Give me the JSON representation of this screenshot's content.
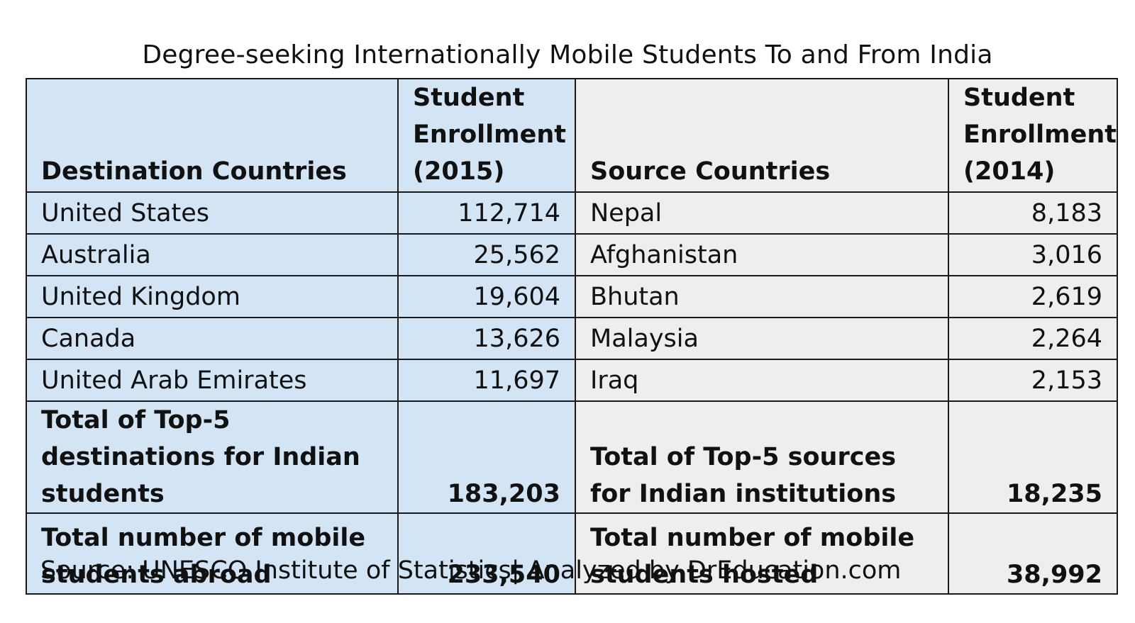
{
  "chart_data": {
    "type": "table",
    "title": "Degree-seeking Internationally Mobile Students To and From India",
    "columns": [
      "Destination Countries",
      "Student Enrollment (2015)",
      "Source Countries",
      "Student Enrollment (2014)"
    ],
    "header": {
      "destination_countries": "Destination Countries",
      "enrollment_2015": "Student Enrollment (2015)",
      "source_countries": "Source Countries",
      "enrollment_2014": "Student Enrollment (2014)"
    },
    "rows": [
      {
        "destination": "United States",
        "destination_enrollment": "112,714",
        "source": "Nepal",
        "source_enrollment": "8,183"
      },
      {
        "destination": "Australia",
        "destination_enrollment": "25,562",
        "source": "Afghanistan",
        "source_enrollment": "3,016"
      },
      {
        "destination": "United Kingdom",
        "destination_enrollment": "19,604",
        "source": "Bhutan",
        "source_enrollment": "2,619"
      },
      {
        "destination": "Canada",
        "destination_enrollment": "13,626",
        "source": "Malaysia",
        "source_enrollment": "2,264"
      },
      {
        "destination": "United Arab Emirates",
        "destination_enrollment": "11,697",
        "source": "Iraq",
        "source_enrollment": "2,153"
      }
    ],
    "totals": [
      {
        "destination_label": "Total of Top-5 destinations for Indian students",
        "destination_value": "183,203",
        "source_label": "Total of Top-5 sources for Indian institutions",
        "source_value": "18,235"
      },
      {
        "destination_label": "Total number of mobile students abroad",
        "destination_value": "233,540",
        "source_label": "Total number of mobile students hosted",
        "source_value": "38,992"
      }
    ],
    "source_note": "Source: UNESCO Institute of Statistics| Analyzed by DrEducation.com"
  },
  "colors": {
    "destination_fill": "#d3e4f4",
    "source_fill": "#eeeeee",
    "border": "#1a1a1a"
  }
}
